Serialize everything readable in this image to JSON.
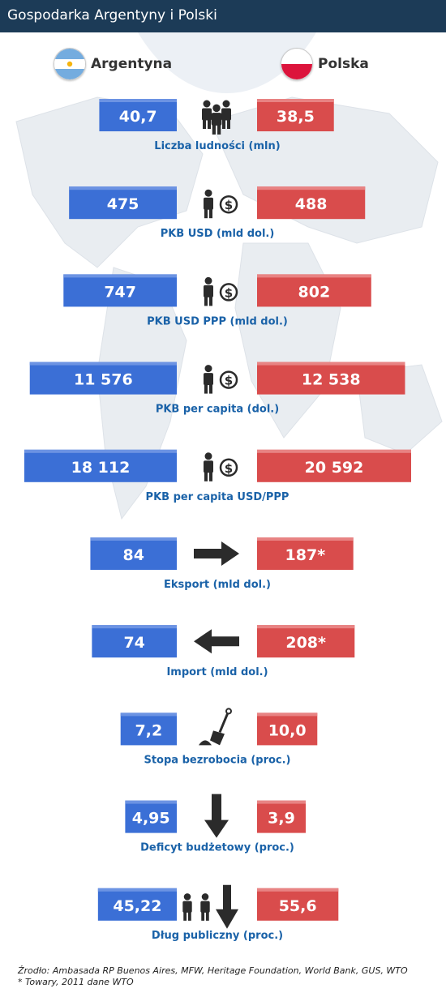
{
  "title": "Gospodarka Argentyny i Polski",
  "countries": {
    "left": {
      "name": "Argentyna",
      "color": "#3b6fd6",
      "icon": "argentina-flag"
    },
    "right": {
      "name": "Polska",
      "color": "#d94c4c",
      "icon": "poland-flag"
    }
  },
  "chart_data": {
    "type": "bar",
    "orientation": "horizontal-butterfly",
    "title": "Gospodarka Argentyny i Polski",
    "series": [
      {
        "name": "Argentyna",
        "color": "#3b6fd6",
        "labels": [
          "40,7",
          "475",
          "747",
          "11 576",
          "18 112",
          "84",
          "74",
          "7,2",
          "4,95",
          "45,22"
        ]
      },
      {
        "name": "Polska",
        "color": "#d94c4c",
        "labels": [
          "38,5",
          "488",
          "802",
          "12 538",
          "20 592",
          "187*",
          "208*",
          "10,0",
          "3,9",
          "55,6"
        ]
      }
    ],
    "rows": [
      {
        "category": "Liczba ludności (mln)",
        "left": 40.7,
        "right": 38.5,
        "icon": "people-group-icon"
      },
      {
        "category": "PKB USD (mld dol.)",
        "left": 475,
        "right": 488,
        "icon": "person-dollar-icon"
      },
      {
        "category": "PKB USD PPP (mld dol.)",
        "left": 747,
        "right": 802,
        "icon": "person-dollar-icon"
      },
      {
        "category": "PKB per capita (dol.)",
        "left": 11576,
        "right": 12538,
        "icon": "person-dollar-icon"
      },
      {
        "category": "PKB per capita USD/PPP",
        "left": 18112,
        "right": 20592,
        "icon": "person-dollar-icon"
      },
      {
        "category": "Eksport (mld dol.)",
        "left": 84,
        "right": 187,
        "icon": "arrow-right-icon"
      },
      {
        "category": "Import (mld dol.)",
        "left": 74,
        "right": 208,
        "icon": "arrow-left-icon"
      },
      {
        "category": "Stopa bezrobocia (proc.)",
        "left": 7.2,
        "right": 10.0,
        "icon": "shovel-icon"
      },
      {
        "category": "Deficyt budżetowy (proc.)",
        "left": 4.95,
        "right": 3.9,
        "icon": "arrow-down-icon"
      },
      {
        "category": "Dług publiczny (proc.)",
        "left": 45.22,
        "right": 55.6,
        "icon": "people-debt-icon"
      }
    ]
  },
  "footer": {
    "source": "Źrodło: Ambasada RP Buenos Aires, MFW, Heritage Foundation, World Bank, GUS, WTO",
    "note": "* Towary, 2011 dane WTO"
  }
}
